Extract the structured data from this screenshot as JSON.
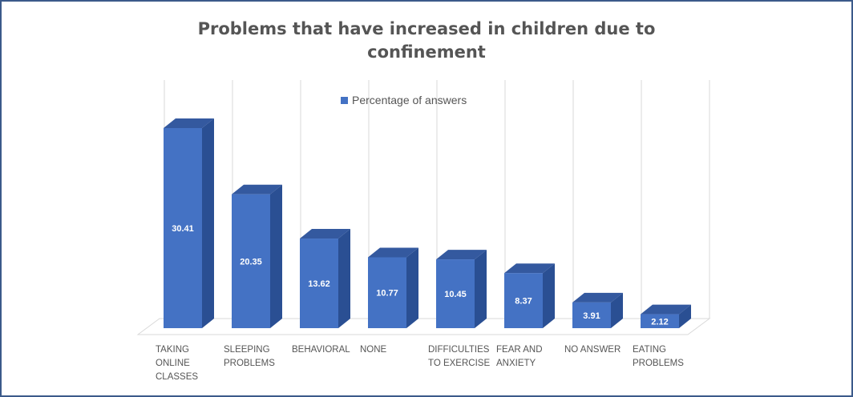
{
  "chart_data": {
    "type": "bar",
    "title_lines": [
      "Problems that have increased in children due to",
      "confinement"
    ],
    "legend": "Percentage of answers",
    "legend_placement": "top-center",
    "categories": [
      [
        "TAKING",
        "ONLINE",
        "CLASSES"
      ],
      [
        "SLEEPING",
        "PROBLEMS"
      ],
      [
        "BEHAVIORAL"
      ],
      [
        "NONE"
      ],
      [
        "DIFFICULTIES",
        "TO EXERCISE"
      ],
      [
        "FEAR AND",
        "ANXIETY"
      ],
      [
        "NO ANSWER"
      ],
      [
        "EATING",
        "PROBLEMS"
      ]
    ],
    "series": [
      {
        "name": "Percentage of answers",
        "values": [
          30.41,
          20.35,
          13.62,
          10.77,
          10.45,
          8.37,
          3.91,
          2.12
        ],
        "labels": [
          "30.41",
          "20.35",
          "13.62",
          "10.77",
          "10.45",
          "8.37",
          "3.91",
          "2.12"
        ]
      }
    ],
    "ylim": [
      0,
      33
    ],
    "grid": "vertical",
    "colors": {
      "front": "#4472c4",
      "side": "#2a4f93",
      "top": "#34599f",
      "grid": "#d9d9d9",
      "frame": "#3b5a8a"
    }
  }
}
